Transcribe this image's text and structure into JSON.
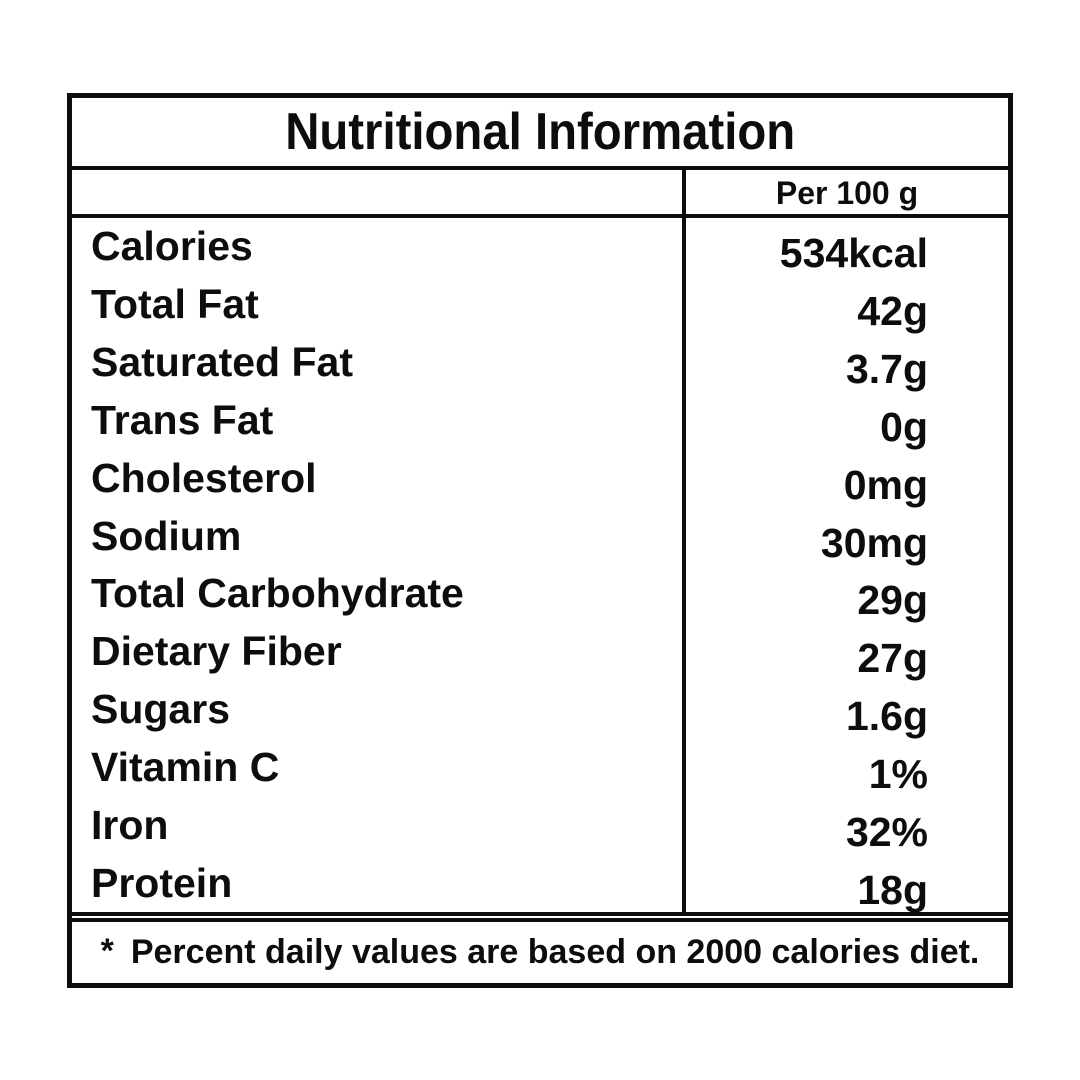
{
  "title": "Nutritional Information",
  "header": {
    "value_column_label": "Per 100 g"
  },
  "rows": [
    {
      "label": "Calories",
      "value": "534kcal"
    },
    {
      "label": "Total Fat",
      "value": "42g"
    },
    {
      "label": "Saturated Fat",
      "value": "3.7g"
    },
    {
      "label": "Trans Fat",
      "value": "0g"
    },
    {
      "label": "Cholesterol",
      "value": "0mg"
    },
    {
      "label": "Sodium",
      "value": "30mg"
    },
    {
      "label": "Total Carbohydrate",
      "value": "29g"
    },
    {
      "label": "Dietary Fiber",
      "value": "27g"
    },
    {
      "label": "Sugars",
      "value": "1.6g"
    },
    {
      "label": "Vitamin C",
      "value": "1%"
    },
    {
      "label": "Iron",
      "value": "32%"
    },
    {
      "label": "Protein",
      "value": "18g"
    }
  ],
  "footnote": {
    "marker": "*",
    "text": "Percent daily values are based on 2000 calories diet."
  },
  "colors": {
    "border": "#0d0d0d",
    "text": "#0d0d0d",
    "background": "#ffffff"
  }
}
